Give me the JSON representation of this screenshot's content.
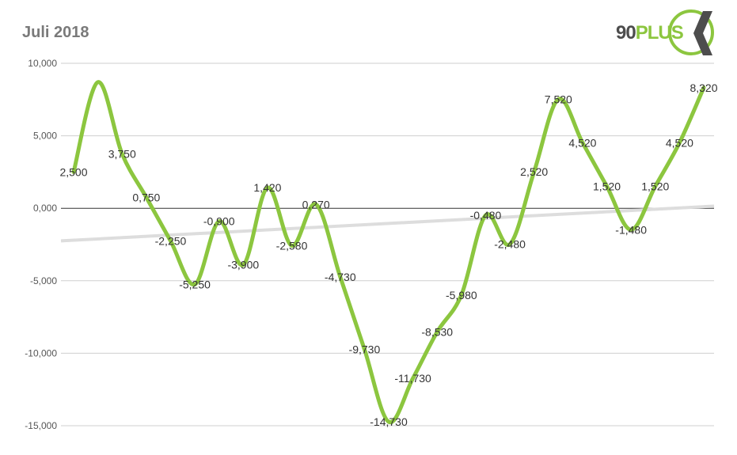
{
  "colors": {
    "series": "#8cc63f",
    "trend": "#dddddd",
    "grid": "#cfcfcf",
    "zero_line": "#333333",
    "logo_gray": "#4d4d4d",
    "logo_green": "#8cc63f"
  },
  "logo": {
    "number": "90",
    "word": "PLUS"
  },
  "chart_data": {
    "type": "line",
    "title": "Juli 2018",
    "xlabel": "",
    "ylabel": "",
    "ylim": [
      -15000,
      10000
    ],
    "y_ticks": [
      10000,
      5000,
      0,
      -5000,
      -10000,
      -15000
    ],
    "y_tick_labels": [
      "10,000",
      "5,000",
      "0,000",
      "-5,000",
      "-10,000",
      "-15,000"
    ],
    "grid": true,
    "legend": "none",
    "smooth": true,
    "trendline": {
      "start": -2250,
      "end": 150
    },
    "series": [
      {
        "values": [
          2500,
          8700,
          3750,
          750,
          -2250,
          -5250,
          -900,
          -3900,
          1420,
          -2580,
          270,
          -4730,
          -9730,
          -14730,
          -11730,
          -8530,
          -5980,
          -480,
          -2480,
          2520,
          7520,
          4520,
          1520,
          -1480,
          1520,
          4520,
          8320
        ],
        "labels": [
          "2,500",
          "",
          "3,750",
          "0,750",
          "-2,250",
          "-5,250",
          "-0,900",
          "-3,900",
          "1,420",
          "-2,580",
          "0,270",
          "-4,730",
          "-9,730",
          "-14,730",
          "-11,730",
          "-8,530",
          "-5,980",
          "-0,480",
          "-2,480",
          "2,520",
          "7,520",
          "4,520",
          "1,520",
          "-1,480",
          "1,520",
          "4,520",
          "8,320"
        ]
      }
    ]
  }
}
